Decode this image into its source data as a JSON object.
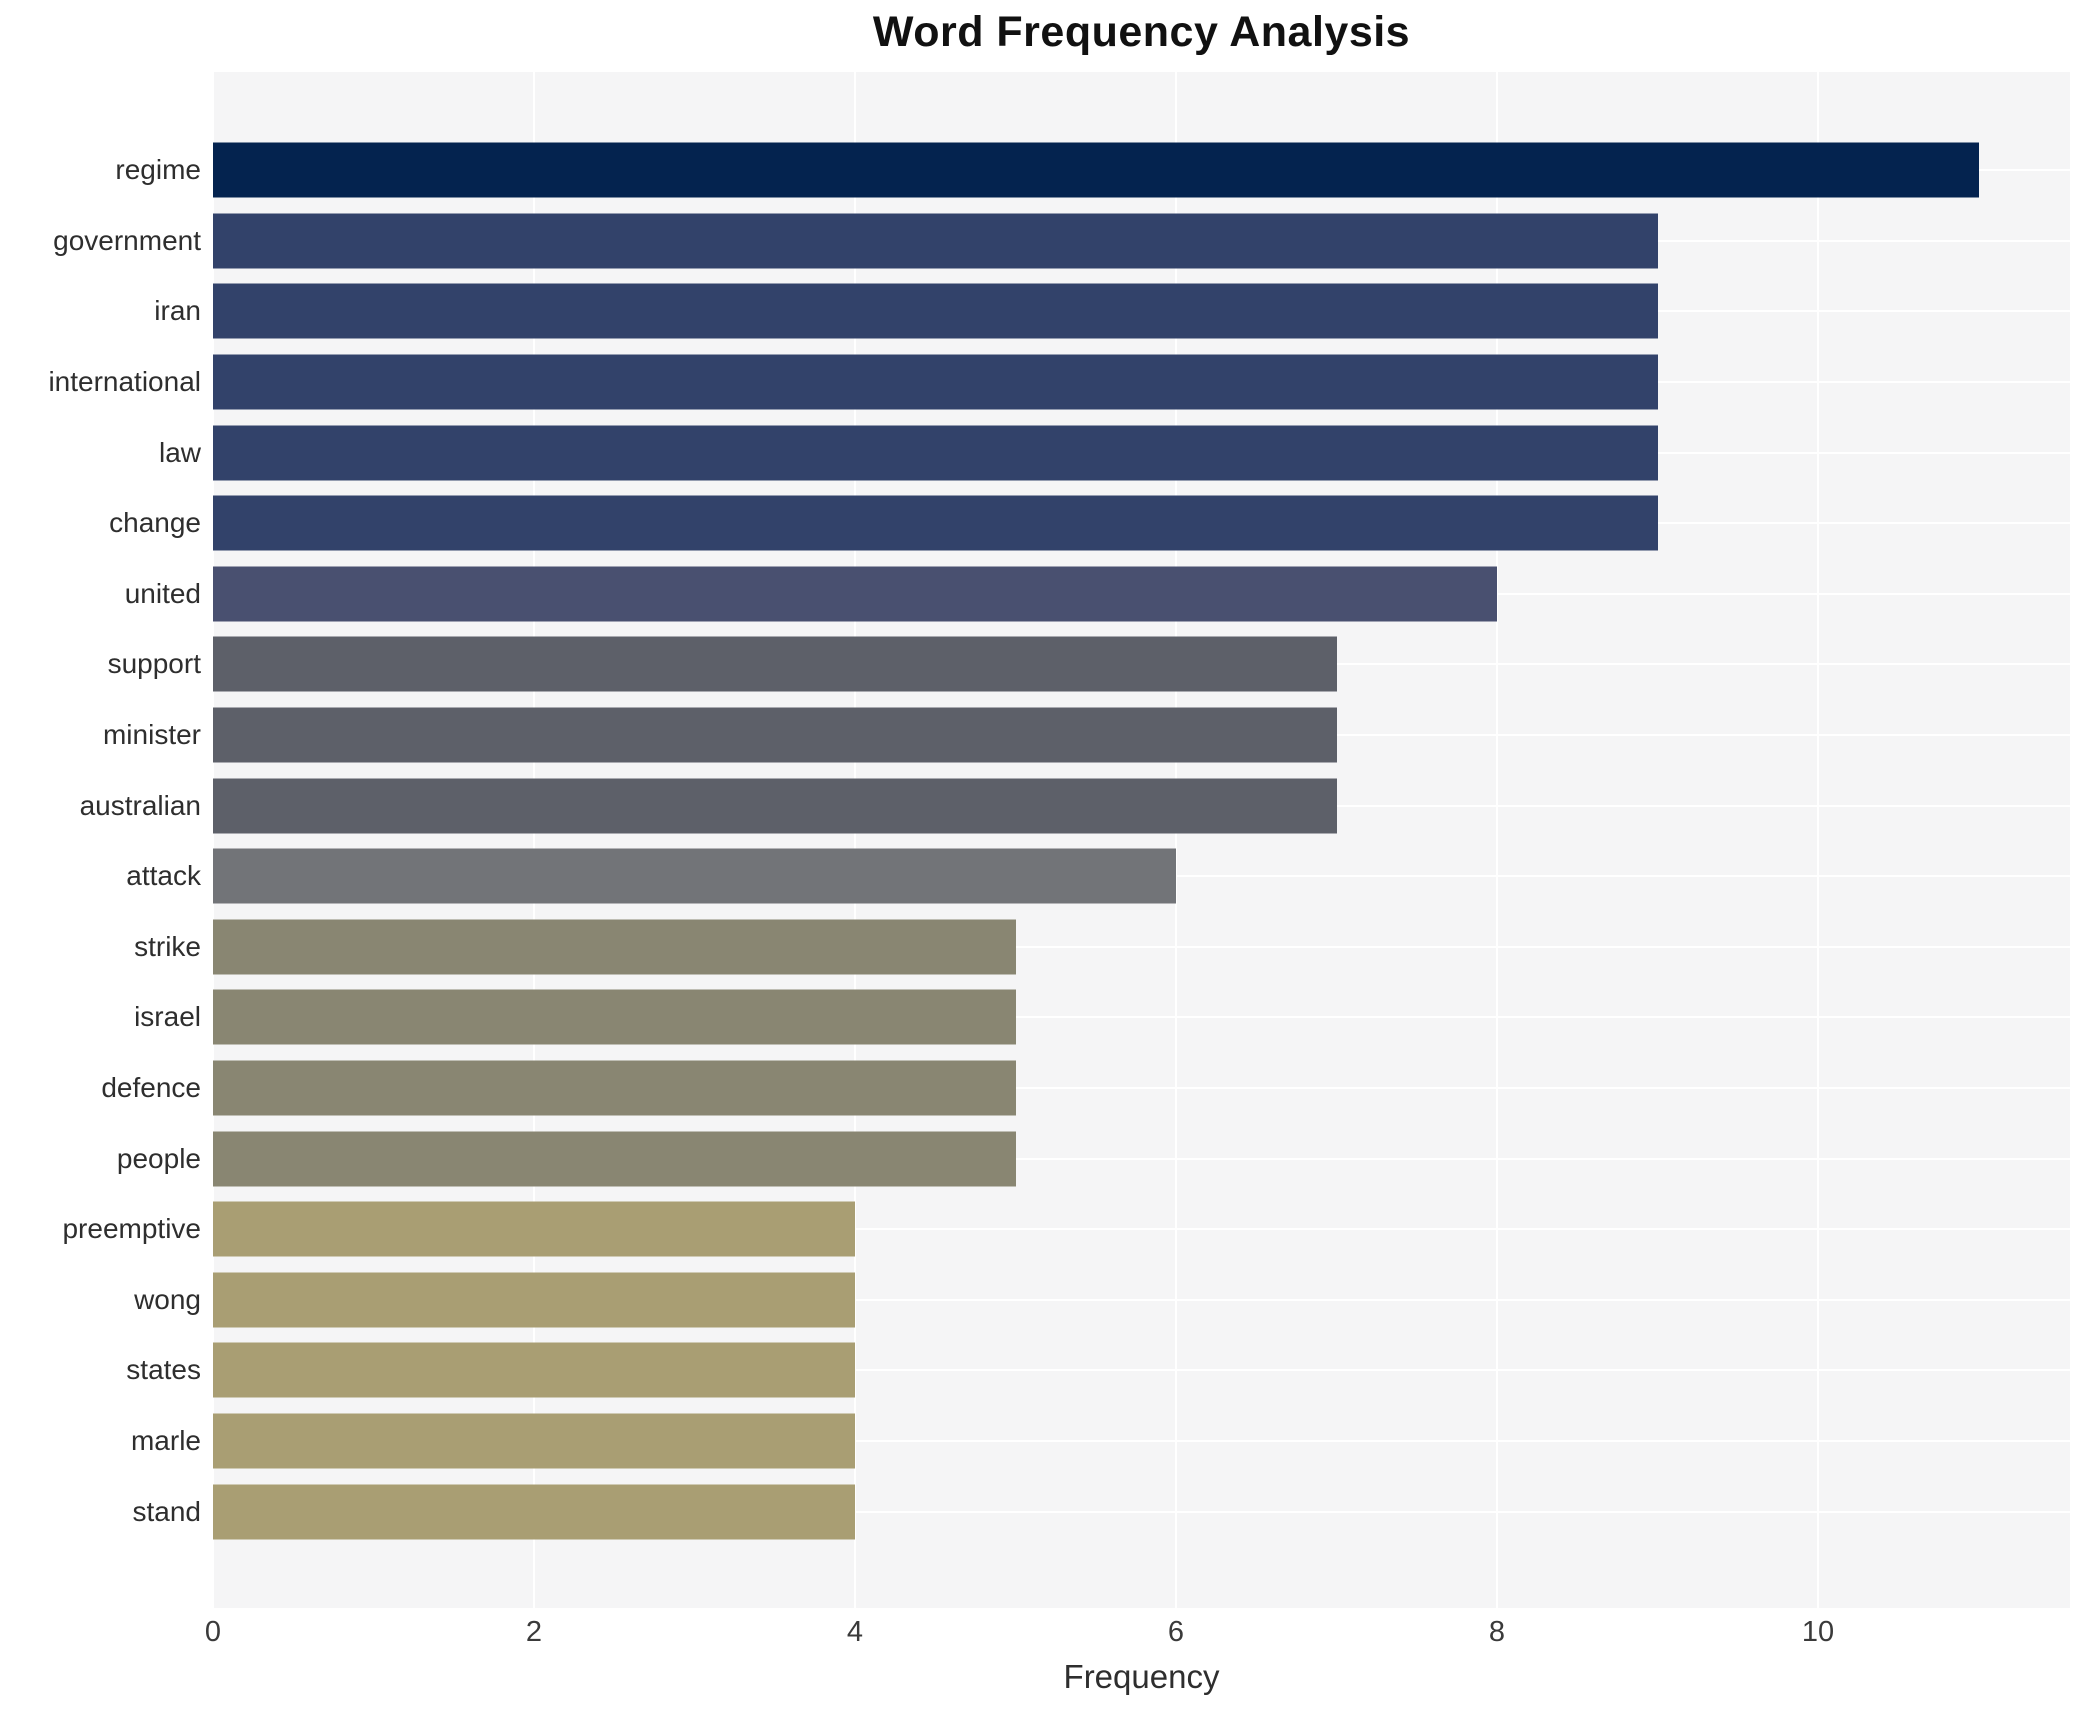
{
  "title": "Word Frequency Analysis",
  "chart_data": {
    "type": "bar",
    "orientation": "horizontal",
    "title": "Word Frequency Analysis",
    "xlabel": "Frequency",
    "ylabel": "",
    "categories": [
      "regime",
      "government",
      "iran",
      "international",
      "law",
      "change",
      "united",
      "support",
      "minister",
      "australian",
      "attack",
      "strike",
      "israel",
      "defence",
      "people",
      "preemptive",
      "wong",
      "states",
      "marle",
      "stand"
    ],
    "values": [
      11,
      9,
      9,
      9,
      9,
      9,
      8,
      7,
      7,
      7,
      6,
      5,
      5,
      5,
      5,
      4,
      4,
      4,
      4,
      4
    ],
    "xticks": [
      0,
      2,
      4,
      6,
      8,
      10
    ],
    "xlim": [
      0,
      11.57
    ],
    "grid": true,
    "legend": false,
    "plot_bg_color": "#f5f5f6",
    "grid_color": "#ffffff",
    "colors_by_value": {
      "11": "#04234f",
      "9": "#32426a",
      "8": "#495070",
      "7": "#5d6069",
      "6": "#727478",
      "5": "#898672",
      "4": "#a99e73"
    }
  }
}
